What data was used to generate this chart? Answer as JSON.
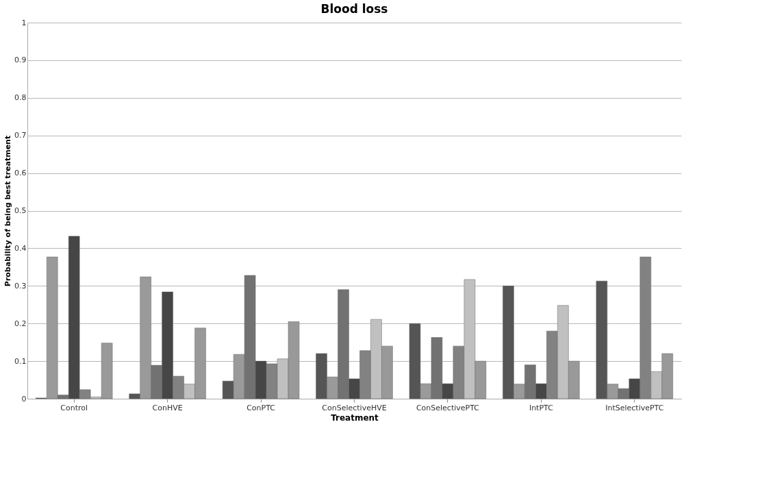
{
  "chart_data": {
    "type": "bar",
    "title": "Blood loss",
    "xlabel": "Treatment",
    "ylabel": "Probability of being best treatment",
    "categories": [
      "Control",
      "ConHVE",
      "ConPTC",
      "ConSelectiveHVE",
      "ConSelectivePTC",
      "IntPTC",
      "IntSelectivePTC"
    ],
    "series": [
      {
        "color": "#555555",
        "values": [
          0.002,
          0.013,
          0.047,
          0.12,
          0.2,
          0.3,
          0.313
        ]
      },
      {
        "color": "#9a9a9a",
        "values": [
          0.377,
          0.324,
          0.118,
          0.058,
          0.04,
          0.039,
          0.039
        ]
      },
      {
        "color": "#727272",
        "values": [
          0.01,
          0.089,
          0.328,
          0.29,
          0.163,
          0.09,
          0.027
        ]
      },
      {
        "color": "#464646",
        "values": [
          0.432,
          0.284,
          0.1,
          0.053,
          0.04,
          0.04,
          0.053
        ]
      },
      {
        "color": "#828282",
        "values": [
          0.024,
          0.06,
          0.093,
          0.128,
          0.14,
          0.18,
          0.377
        ]
      },
      {
        "color": "#c0c0c0",
        "values": [
          0.005,
          0.039,
          0.106,
          0.211,
          0.317,
          0.248,
          0.072
        ]
      },
      {
        "color": "#999999",
        "values": [
          0.148,
          0.188,
          0.205,
          0.14,
          0.1,
          0.1,
          0.12
        ]
      }
    ],
    "ylim": [
      0,
      1
    ],
    "yticks": [
      0,
      0.1,
      0.2,
      0.3,
      0.4,
      0.5,
      0.6,
      0.7,
      0.8,
      0.9,
      1
    ],
    "grid": "y",
    "legend": false
  }
}
